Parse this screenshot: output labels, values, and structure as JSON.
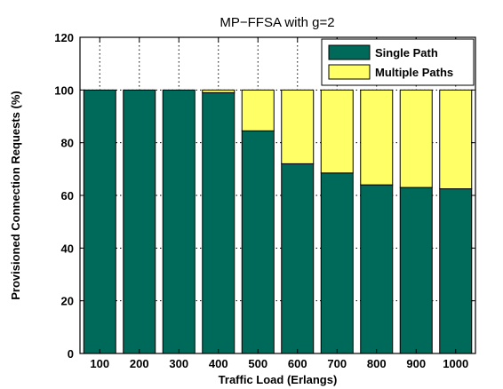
{
  "chart_data": {
    "type": "bar",
    "stacked": true,
    "title": "MP−FFSA with g=2",
    "xlabel": "Traffic Load (Erlangs)",
    "ylabel": "Provisioned Connection Requests (%)",
    "categories": [
      "100",
      "200",
      "300",
      "400",
      "500",
      "600",
      "700",
      "800",
      "900",
      "1000"
    ],
    "ylim": [
      0,
      120
    ],
    "yticks": [
      0,
      20,
      40,
      60,
      80,
      100,
      120
    ],
    "grid": true,
    "legend_position": "top-right",
    "series": [
      {
        "name": "Single Path",
        "color": "#006a5a",
        "values": [
          100,
          100,
          100,
          99,
          84.5,
          72,
          68.5,
          64,
          63,
          62.5
        ]
      },
      {
        "name": "Multiple Paths",
        "color": "#ffff66",
        "values": [
          0,
          0,
          0,
          1,
          15.5,
          28,
          31.5,
          36,
          37,
          37.5
        ]
      }
    ]
  }
}
